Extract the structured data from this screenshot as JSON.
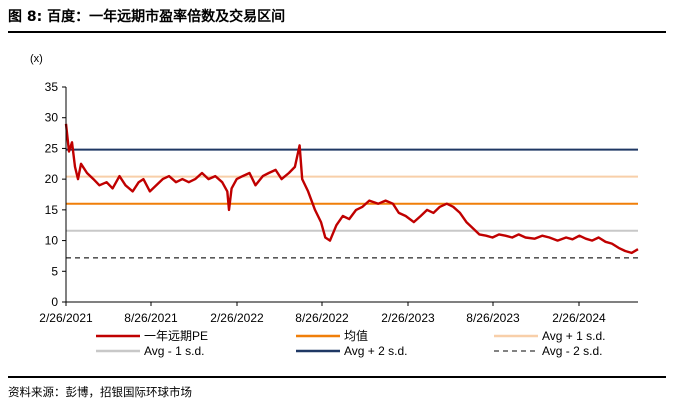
{
  "header": {
    "title": "图 8: 百度：一年远期市盈率倍数及交易区间"
  },
  "footer": {
    "source": "资料来源：彭博，招银国际环球市场"
  },
  "chart_data": {
    "type": "line",
    "title": "图 8: 百度：一年远期市盈率倍数及交易区间",
    "unit_label": "(x)",
    "ylim": [
      0,
      35
    ],
    "yticks": [
      0,
      5,
      10,
      15,
      20,
      25,
      30,
      35
    ],
    "x_tick_labels": [
      "2/26/2021",
      "8/26/2021",
      "2/26/2022",
      "8/26/2022",
      "2/26/2023",
      "8/26/2023",
      "2/26/2024"
    ],
    "x_range": [
      "2021-02-26",
      "2024-10-25"
    ],
    "grid": false,
    "legend_position": "bottom",
    "colors": {
      "pe": "#c00000",
      "mean": "#f07f09",
      "plus1": "#f8cfa9",
      "minus1": "#c8c8c8",
      "plus2": "#1f3864",
      "minus2": "#595959"
    },
    "series": [
      {
        "name": "一年远期PE",
        "style": "line",
        "x": [
          "2021-02-26",
          "2021-03-05",
          "2021-03-12",
          "2021-03-19",
          "2021-03-26",
          "2021-04-02",
          "2021-04-16",
          "2021-05-01",
          "2021-05-15",
          "2021-06-01",
          "2021-06-15",
          "2021-07-01",
          "2021-07-15",
          "2021-08-01",
          "2021-08-15",
          "2021-08-26",
          "2021-09-10",
          "2021-09-25",
          "2021-10-10",
          "2021-10-25",
          "2021-11-10",
          "2021-11-25",
          "2021-12-10",
          "2021-12-25",
          "2022-01-10",
          "2022-01-25",
          "2022-02-10",
          "2022-02-26",
          "2022-03-10",
          "2022-03-14",
          "2022-03-20",
          "2022-04-01",
          "2022-04-15",
          "2022-05-01",
          "2022-05-15",
          "2022-06-01",
          "2022-06-15",
          "2022-07-01",
          "2022-07-15",
          "2022-08-01",
          "2022-08-15",
          "2022-08-26",
          "2022-09-01",
          "2022-09-15",
          "2022-10-01",
          "2022-10-15",
          "2022-10-25",
          "2022-11-05",
          "2022-11-20",
          "2022-12-05",
          "2022-12-20",
          "2023-01-05",
          "2023-01-20",
          "2023-02-05",
          "2023-02-26",
          "2023-03-15",
          "2023-04-01",
          "2023-04-15",
          "2023-05-01",
          "2023-05-20",
          "2023-06-05",
          "2023-06-20",
          "2023-07-05",
          "2023-07-20",
          "2023-08-05",
          "2023-08-20",
          "2023-09-05",
          "2023-09-20",
          "2023-10-05",
          "2023-10-20",
          "2023-11-05",
          "2023-11-20",
          "2023-12-05",
          "2023-12-20",
          "2024-01-05",
          "2024-01-20",
          "2024-02-05",
          "2024-02-26",
          "2024-03-15",
          "2024-04-01",
          "2024-04-20",
          "2024-05-10",
          "2024-05-25",
          "2024-06-10",
          "2024-06-25",
          "2024-07-10",
          "2024-07-25",
          "2024-08-10",
          "2024-08-25",
          "2024-09-10",
          "2024-09-25",
          "2024-10-10",
          "2024-10-25"
        ],
        "values": [
          29.0,
          24.5,
          26.0,
          22.0,
          20.0,
          22.5,
          21.0,
          20.0,
          19.0,
          19.5,
          18.5,
          20.5,
          19.0,
          18.0,
          19.5,
          20.0,
          18.0,
          19.0,
          20.0,
          20.5,
          19.5,
          20.0,
          19.5,
          20.0,
          21.0,
          20.0,
          20.5,
          19.5,
          18.0,
          15.0,
          18.5,
          20.0,
          20.5,
          21.0,
          19.0,
          20.5,
          21.0,
          21.5,
          20.0,
          21.0,
          22.0,
          25.5,
          20.0,
          18.0,
          15.0,
          13.0,
          10.5,
          10.0,
          12.5,
          14.0,
          13.5,
          15.0,
          15.5,
          16.5,
          16.0,
          16.5,
          16.0,
          14.5,
          14.0,
          13.0,
          14.0,
          15.0,
          14.5,
          15.5,
          16.0,
          15.5,
          14.5,
          13.0,
          12.0,
          11.0,
          10.8,
          10.5,
          11.0,
          10.8,
          10.5,
          11.0,
          10.5,
          10.3,
          10.8,
          10.5,
          10.0,
          10.5,
          10.2,
          10.8,
          10.3,
          10.0,
          10.5,
          9.8,
          9.5,
          8.8,
          8.3,
          8.0,
          8.6
        ]
      },
      {
        "name": "均值",
        "style": "hline",
        "value": 16.0
      },
      {
        "name": "Avg + 1 s.d.",
        "style": "hline",
        "value": 20.4
      },
      {
        "name": "Avg - 1 s.d.",
        "style": "hline",
        "value": 11.6
      },
      {
        "name": "Avg + 2 s.d.",
        "style": "hline",
        "value": 24.8
      },
      {
        "name": "Avg - 2 s.d.",
        "style": "dashed-hline",
        "value": 7.2
      }
    ]
  }
}
